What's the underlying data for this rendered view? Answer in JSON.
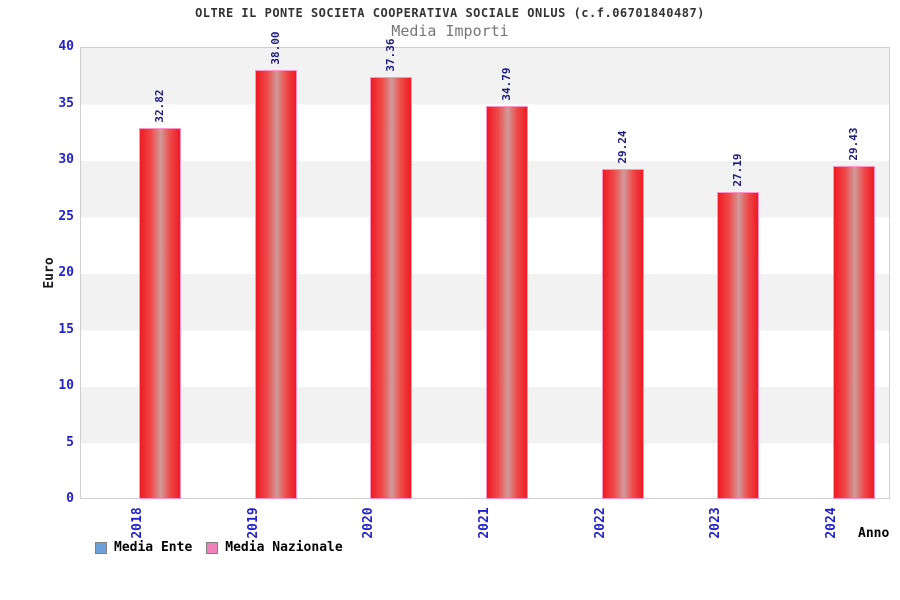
{
  "chart_data": {
    "type": "bar",
    "title": "OLTRE IL PONTE SOCIETA COOPERATIVA SOCIALE ONLUS (c.f.06701840487)",
    "subtitle": "Media Importi",
    "xlabel": "Anno",
    "ylabel": "Euro",
    "categories": [
      "2018",
      "2019",
      "2020",
      "2021",
      "2022",
      "2023",
      "2024"
    ],
    "series": [
      {
        "name": "Media Ente",
        "swatch": "#6f9fd8",
        "values": []
      },
      {
        "name": "Media Nazionale",
        "swatch": "#ef82b6",
        "values": [
          32.82,
          38.0,
          37.36,
          34.79,
          29.24,
          27.19,
          29.43
        ],
        "value_labels": [
          "32.82",
          "38.00",
          "37.36",
          "34.79",
          "29.24",
          "27.19",
          "29.43"
        ]
      }
    ],
    "ylim": [
      0,
      40
    ],
    "yticks": [
      0,
      5,
      10,
      15,
      20,
      25,
      30,
      35,
      40
    ],
    "legend_position": "bottom-left",
    "grid": "horizontal-bands-every-5"
  },
  "colors": {
    "bar_fill": "#ee1b24",
    "bar_mid_fill": "#ef4a4a",
    "bar_highlight": "#d09a9a",
    "bar_border": "#ff93c2",
    "axis_tick_text": "#2222cc",
    "value_label_text": "#1c1c82",
    "band_gray": "#f2f2f2",
    "plot_border": "#d0d0d0",
    "title_text": "#333333",
    "subtitle_text": "#767676"
  }
}
